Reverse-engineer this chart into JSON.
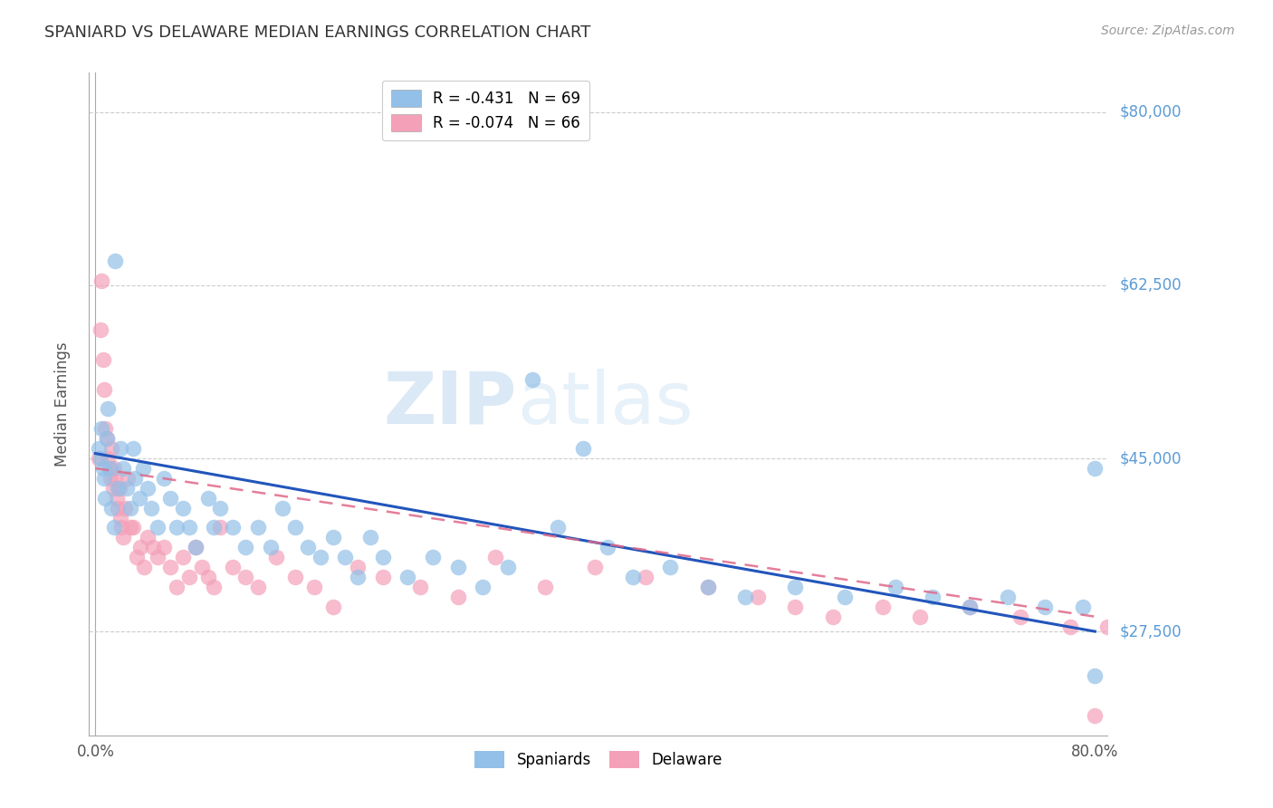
{
  "title": "SPANIARD VS DELAWARE MEDIAN EARNINGS CORRELATION CHART",
  "source": "Source: ZipAtlas.com",
  "ylabel": "Median Earnings",
  "ytick_labels": [
    "$27,500",
    "$45,000",
    "$62,500",
    "$80,000"
  ],
  "ytick_values": [
    27500,
    45000,
    62500,
    80000
  ],
  "ymin": 17000,
  "ymax": 84000,
  "xmin": 0.0,
  "xmax": 0.8,
  "legend_blue_r": -0.431,
  "legend_blue_n": 69,
  "legend_pink_r": -0.074,
  "legend_pink_n": 66,
  "blue_color": "#92C0E8",
  "pink_color": "#F4A0B8",
  "blue_line_color": "#2255BB",
  "pink_line_color": "#E06888",
  "watermark_color": "#C8DCF0",
  "spaniards_x": [
    0.003,
    0.004,
    0.005,
    0.006,
    0.007,
    0.008,
    0.009,
    0.01,
    0.012,
    0.013,
    0.015,
    0.016,
    0.018,
    0.02,
    0.022,
    0.025,
    0.028,
    0.03,
    0.032,
    0.035,
    0.038,
    0.042,
    0.045,
    0.05,
    0.055,
    0.06,
    0.065,
    0.07,
    0.075,
    0.08,
    0.09,
    0.095,
    0.1,
    0.11,
    0.12,
    0.13,
    0.14,
    0.15,
    0.16,
    0.17,
    0.18,
    0.19,
    0.2,
    0.21,
    0.22,
    0.23,
    0.25,
    0.27,
    0.29,
    0.31,
    0.33,
    0.35,
    0.37,
    0.39,
    0.41,
    0.43,
    0.46,
    0.49,
    0.52,
    0.56,
    0.6,
    0.64,
    0.67,
    0.7,
    0.73,
    0.76,
    0.79,
    0.8,
    0.8
  ],
  "spaniards_y": [
    46000,
    45000,
    48000,
    44000,
    43000,
    41000,
    47000,
    50000,
    44000,
    40000,
    38000,
    65000,
    42000,
    46000,
    44000,
    42000,
    40000,
    46000,
    43000,
    41000,
    44000,
    42000,
    40000,
    38000,
    43000,
    41000,
    38000,
    40000,
    38000,
    36000,
    41000,
    38000,
    40000,
    38000,
    36000,
    38000,
    36000,
    40000,
    38000,
    36000,
    35000,
    37000,
    35000,
    33000,
    37000,
    35000,
    33000,
    35000,
    34000,
    32000,
    34000,
    53000,
    38000,
    46000,
    36000,
    33000,
    34000,
    32000,
    31000,
    32000,
    31000,
    32000,
    31000,
    30000,
    31000,
    30000,
    30000,
    44000,
    23000
  ],
  "delaware_x": [
    0.003,
    0.004,
    0.005,
    0.006,
    0.007,
    0.008,
    0.009,
    0.01,
    0.011,
    0.012,
    0.013,
    0.014,
    0.015,
    0.016,
    0.017,
    0.018,
    0.019,
    0.02,
    0.021,
    0.022,
    0.024,
    0.026,
    0.028,
    0.03,
    0.033,
    0.036,
    0.039,
    0.042,
    0.046,
    0.05,
    0.055,
    0.06,
    0.065,
    0.07,
    0.075,
    0.08,
    0.085,
    0.09,
    0.095,
    0.1,
    0.11,
    0.12,
    0.13,
    0.145,
    0.16,
    0.175,
    0.19,
    0.21,
    0.23,
    0.26,
    0.29,
    0.32,
    0.36,
    0.4,
    0.44,
    0.49,
    0.53,
    0.56,
    0.59,
    0.63,
    0.66,
    0.7,
    0.74,
    0.78,
    0.8,
    0.81
  ],
  "delaware_y": [
    45000,
    58000,
    63000,
    55000,
    52000,
    48000,
    47000,
    45000,
    44000,
    43000,
    46000,
    42000,
    44000,
    43000,
    41000,
    40000,
    42000,
    39000,
    38000,
    37000,
    40000,
    43000,
    38000,
    38000,
    35000,
    36000,
    34000,
    37000,
    36000,
    35000,
    36000,
    34000,
    32000,
    35000,
    33000,
    36000,
    34000,
    33000,
    32000,
    38000,
    34000,
    33000,
    32000,
    35000,
    33000,
    32000,
    30000,
    34000,
    33000,
    32000,
    31000,
    35000,
    32000,
    34000,
    33000,
    32000,
    31000,
    30000,
    29000,
    30000,
    29000,
    30000,
    29000,
    28000,
    19000,
    28000
  ]
}
